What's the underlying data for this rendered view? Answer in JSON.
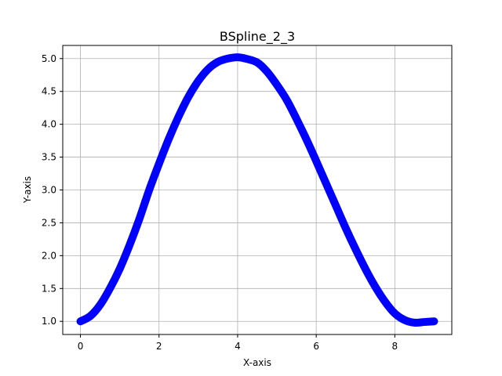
{
  "chart_data": {
    "type": "line",
    "title": "BSpline_2_3",
    "xlabel": "X-axis",
    "ylabel": "Y-axis",
    "xlim": [
      -0.45,
      9.45
    ],
    "ylim": [
      0.8,
      5.2
    ],
    "xticks": [
      0,
      2,
      4,
      6,
      8
    ],
    "xtick_labels": [
      "0",
      "2",
      "4",
      "6",
      "8"
    ],
    "yticks": [
      1.0,
      1.5,
      2.0,
      2.5,
      3.0,
      3.5,
      4.0,
      4.5,
      5.0
    ],
    "ytick_labels": [
      "1.0",
      "1.5",
      "2.0",
      "2.5",
      "3.0",
      "3.5",
      "4.0",
      "4.5",
      "5.0"
    ],
    "grid": true,
    "series": [
      {
        "color": "#0000ff",
        "x": [
          0.0,
          0.25,
          0.5,
          0.75,
          1.0,
          1.25,
          1.5,
          1.75,
          2.0,
          2.25,
          2.5,
          2.75,
          3.0,
          3.25,
          3.5,
          3.75,
          4.0,
          4.2,
          4.5,
          4.75,
          5.0,
          5.25,
          5.5,
          5.75,
          6.0,
          6.25,
          6.5,
          6.75,
          7.0,
          7.25,
          7.5,
          7.75,
          8.0,
          8.25,
          8.5,
          8.75,
          9.0
        ],
        "y": [
          1.0,
          1.08,
          1.25,
          1.5,
          1.8,
          2.16,
          2.56,
          3.0,
          3.4,
          3.78,
          4.12,
          4.42,
          4.66,
          4.84,
          4.95,
          5.0,
          5.02,
          5.0,
          4.94,
          4.8,
          4.6,
          4.37,
          4.08,
          3.77,
          3.44,
          3.1,
          2.76,
          2.42,
          2.1,
          1.8,
          1.53,
          1.3,
          1.12,
          1.02,
          0.98,
          0.99,
          1.0
        ]
      }
    ]
  }
}
